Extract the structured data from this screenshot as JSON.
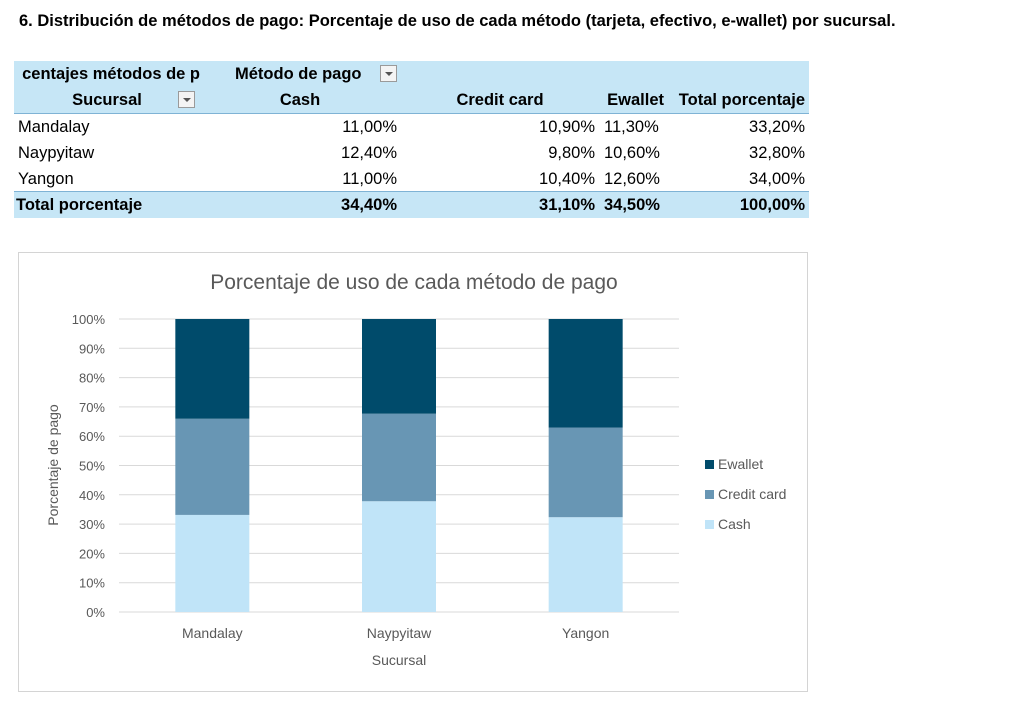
{
  "heading": "6. Distribución de métodos de pago: Porcentaje de uso de cada método (tarjeta, efectivo, e-wallet) por sucursal.",
  "pivot": {
    "corner_label": "centajes métodos de p",
    "column_field": "Método de pago",
    "row_field": "Sucursal",
    "columns": [
      "Cash",
      "Credit card",
      "Ewallet",
      "Total porcentaje"
    ],
    "rows": [
      {
        "name": "Mandalay",
        "values": [
          "11,00%",
          "10,90%",
          "11,30%",
          "33,20%"
        ]
      },
      {
        "name": "Naypyitaw",
        "values": [
          "12,40%",
          "9,80%",
          "10,60%",
          "32,80%"
        ]
      },
      {
        "name": "Yangon",
        "values": [
          "11,00%",
          "10,40%",
          "12,60%",
          "34,00%"
        ]
      }
    ],
    "total": {
      "name": "Total porcentaje",
      "values": [
        "34,40%",
        "31,10%",
        "34,50%",
        "100,00%"
      ]
    }
  },
  "chart_data": {
    "type": "bar",
    "stacked": "percent",
    "title": "Porcentaje de uso de cada método de pago",
    "xlabel": "Sucursal",
    "ylabel": "Porcentaje de pago",
    "categories": [
      "Mandalay",
      "Naypyitaw",
      "Yangon"
    ],
    "yticks": [
      "0%",
      "10%",
      "20%",
      "30%",
      "40%",
      "50%",
      "60%",
      "70%",
      "80%",
      "90%",
      "100%"
    ],
    "ylim": [
      0,
      100
    ],
    "grid": true,
    "legend_position": "right",
    "series": [
      {
        "name": "Cash",
        "color": "#c0e4f8",
        "values": [
          11.0,
          12.4,
          11.0
        ]
      },
      {
        "name": "Credit card",
        "color": "#6896b4",
        "values": [
          10.9,
          9.8,
          10.4
        ]
      },
      {
        "name": "Ewallet",
        "color": "#004b6b",
        "values": [
          11.3,
          10.6,
          12.6
        ]
      }
    ],
    "legend_order": [
      "Ewallet",
      "Credit card",
      "Cash"
    ],
    "colors": {
      "header_fill": "#c6e6f6",
      "grid": "#d9d9d9",
      "axis_text": "#595959"
    }
  }
}
